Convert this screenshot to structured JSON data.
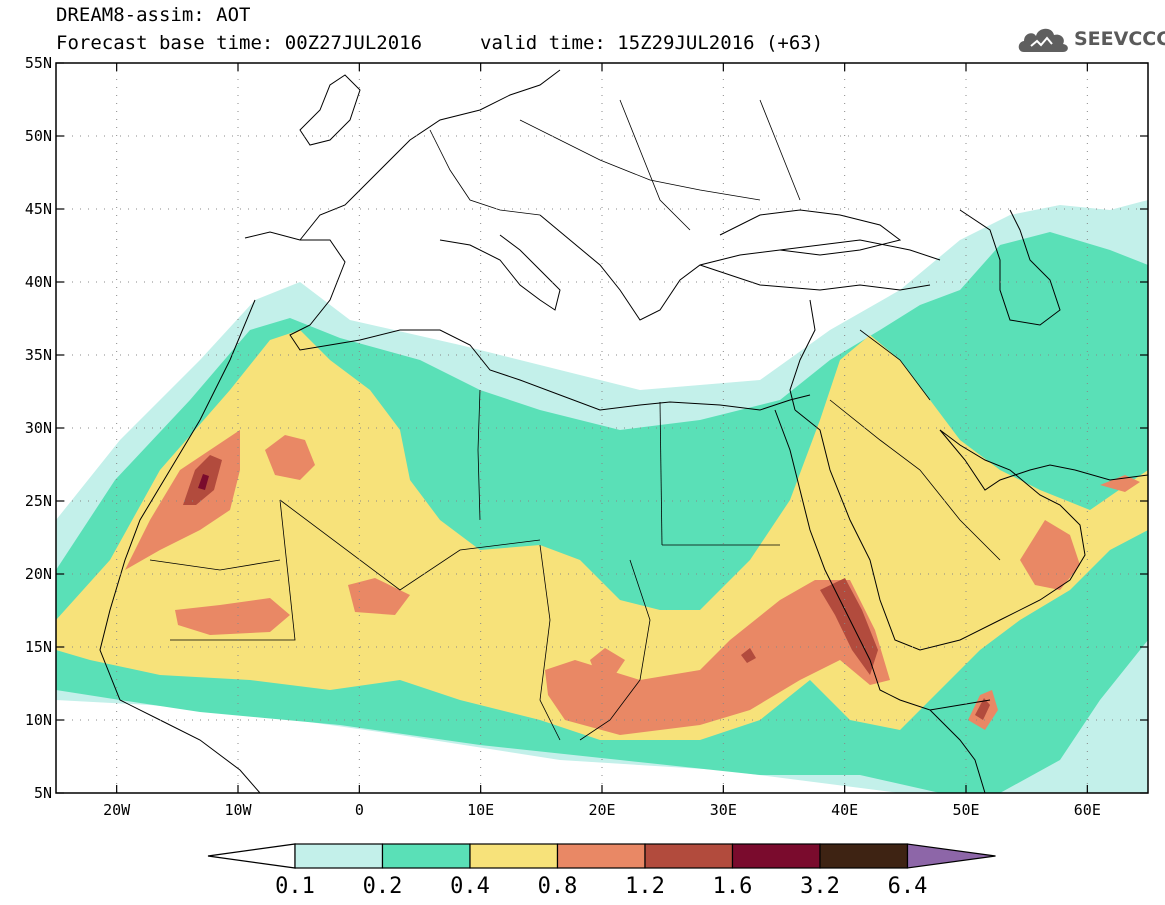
{
  "title": {
    "line1": "DREAM8-assim: AOT",
    "line2_base": "Forecast base time: 00Z27JUL2016",
    "line2_valid": "valid time: 15Z29JUL2016 (+63)"
  },
  "logo": {
    "text": "SEEVCCC",
    "icon": "cloud-icon"
  },
  "map": {
    "lon_range": [
      -25,
      65
    ],
    "lat_range": [
      5,
      55
    ],
    "x_ticks": [
      "20W",
      "10W",
      "0",
      "10E",
      "20E",
      "30E",
      "40E",
      "50E",
      "60E"
    ],
    "x_tick_values": [
      -20,
      -10,
      0,
      10,
      20,
      30,
      40,
      50,
      60
    ],
    "y_ticks": [
      "55N",
      "50N",
      "45N",
      "40N",
      "35N",
      "30N",
      "25N",
      "20N",
      "15N",
      "10N",
      "5N"
    ],
    "y_tick_values": [
      55,
      50,
      45,
      40,
      35,
      30,
      25,
      20,
      15,
      10,
      5
    ],
    "grid": "dotted"
  },
  "colorbar": {
    "labels": [
      "0.1",
      "0.2",
      "0.4",
      "0.8",
      "1.2",
      "1.6",
      "3.2",
      "6.4"
    ],
    "colors": [
      "#c3f0ea",
      "#5ae0b7",
      "#f7e27a",
      "#e98865",
      "#b24b3d",
      "#7a0b2d",
      "#3e2313",
      "#8d66a8"
    ],
    "low_color": "#ffffff"
  },
  "colors": {
    "c1": "#c3f0ea",
    "c2": "#5ae0b7",
    "c3": "#f7e27a",
    "c4": "#e98865",
    "c5": "#b24b3d",
    "c6": "#7a0b2d"
  }
}
